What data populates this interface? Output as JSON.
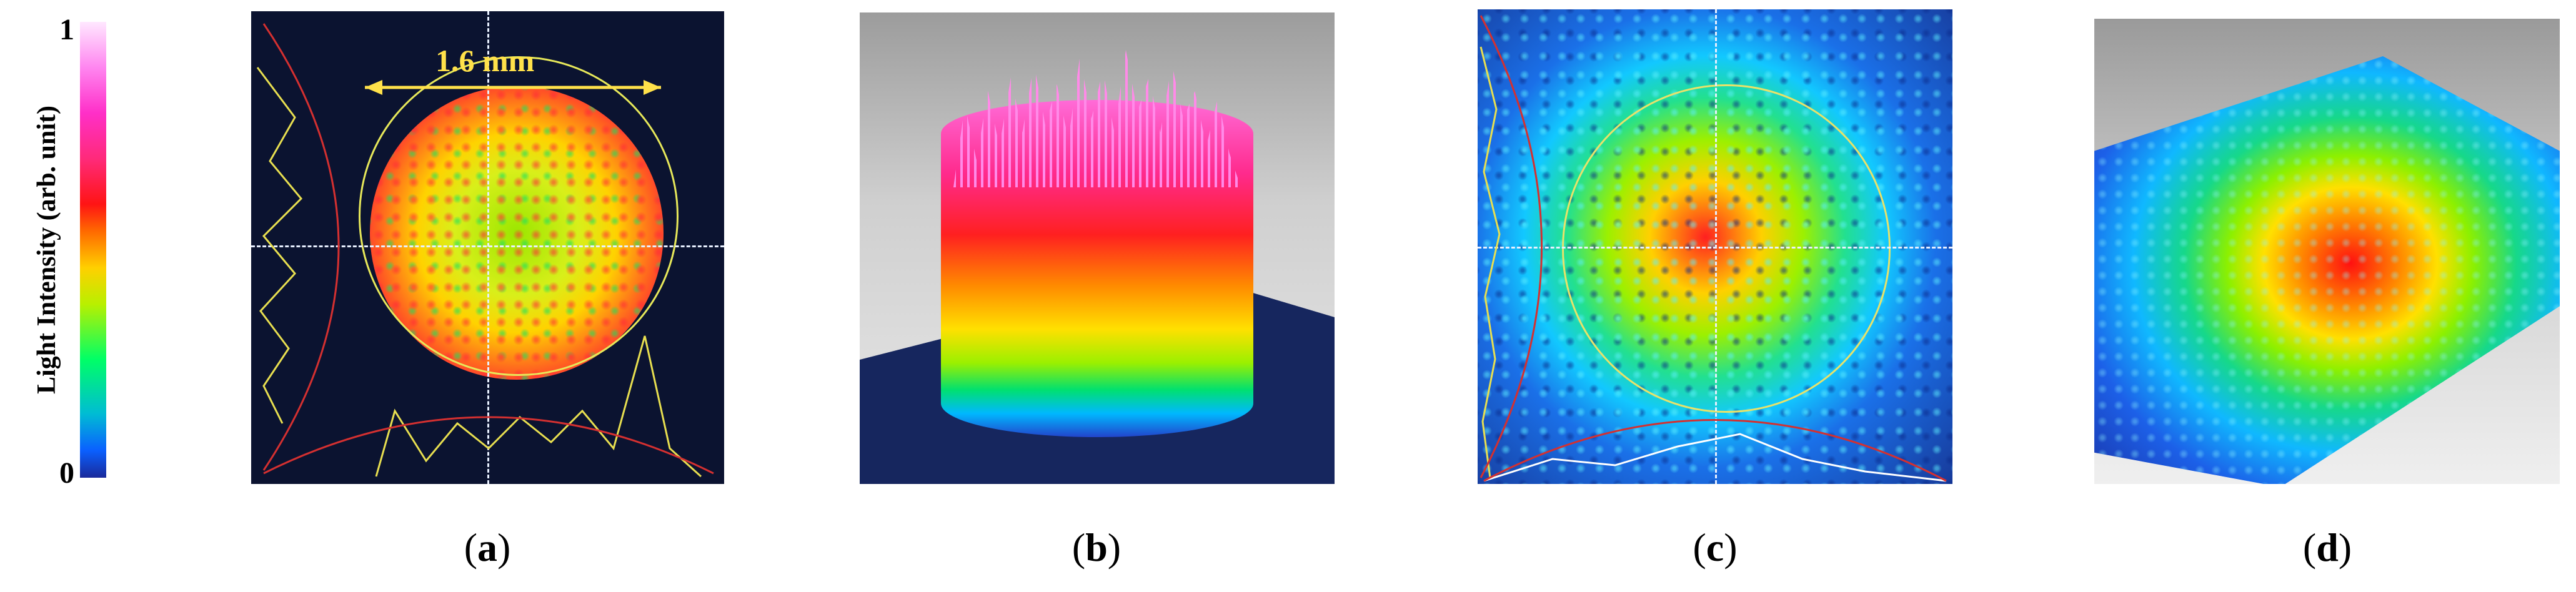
{
  "colorbar": {
    "title": "Light Intensity (arb. unit)",
    "max_label": "1",
    "min_label": "0"
  },
  "panel_a": {
    "caption_letter": "a",
    "width_label": "1.6 mm"
  },
  "panel_b": {
    "caption_letter": "b"
  },
  "panel_c": {
    "caption_letter": "c"
  },
  "panel_d": {
    "caption_letter": "d"
  },
  "caption": {
    "open": "(",
    "close": ")"
  }
}
